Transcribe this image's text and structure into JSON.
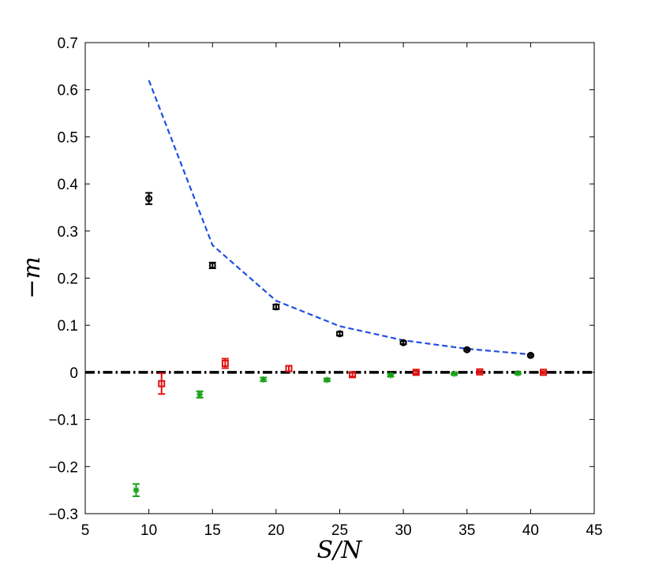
{
  "chart_data": {
    "type": "scatter",
    "xlabel": "S/N",
    "ylabel": "−m",
    "xlim": [
      5,
      45
    ],
    "ylim": [
      -0.3,
      0.7
    ],
    "xticks": [
      5,
      10,
      15,
      20,
      25,
      30,
      35,
      40,
      45
    ],
    "yticks": [
      -0.3,
      -0.2,
      -0.1,
      0,
      0.1,
      0.2,
      0.3,
      0.4,
      0.5,
      0.6,
      0.7
    ],
    "ytick_labels": [
      "−0.3",
      "−0.2",
      "−0.1",
      "0",
      "0.1",
      "0.2",
      "0.3",
      "0.4",
      "0.5",
      "0.6",
      "0.7"
    ],
    "grid": false,
    "series": [
      {
        "kind": "dashed-line",
        "color": "#1f4fe0",
        "x": [
          10,
          15,
          20,
          25,
          30,
          35,
          40
        ],
        "y": [
          0.62,
          0.27,
          0.152,
          0.098,
          0.068,
          0.05,
          0.038
        ]
      },
      {
        "kind": "points",
        "marker": "circle",
        "color": "#000000",
        "x": [
          10,
          15,
          20,
          25,
          30,
          35,
          40
        ],
        "y": [
          0.369,
          0.227,
          0.139,
          0.082,
          0.063,
          0.048,
          0.036
        ],
        "err": [
          0.012,
          0.006,
          0.005,
          0.004,
          0.003,
          0.002,
          0.002
        ]
      },
      {
        "kind": "points",
        "marker": "square",
        "color": "#e01010",
        "x": [
          11,
          16,
          21,
          26,
          31,
          36,
          41
        ],
        "y": [
          -0.024,
          0.019,
          0.008,
          -0.005,
          0.0,
          0.001,
          0.0
        ],
        "err": [
          0.022,
          0.01,
          0.006,
          0.004,
          0.003,
          0.002,
          0.002
        ]
      },
      {
        "kind": "points",
        "marker": "star",
        "color": "#1aa01a",
        "x": [
          9,
          14,
          19,
          24,
          29,
          34,
          39
        ],
        "y": [
          -0.25,
          -0.047,
          -0.015,
          -0.016,
          -0.006,
          -0.003,
          -0.002
        ],
        "err": [
          0.013,
          0.007,
          0.004,
          0.003,
          0.003,
          0.002,
          0.002
        ]
      }
    ],
    "reference_line": {
      "y": 0,
      "style": "dash-dot",
      "color": "#000000"
    }
  }
}
